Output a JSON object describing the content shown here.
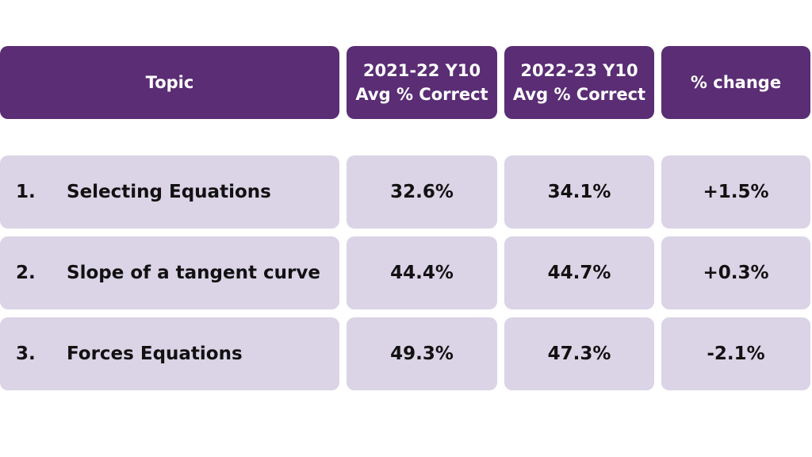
{
  "table": {
    "header": [
      [
        "Topic"
      ],
      [
        "2021-22 Y10",
        "Avg % Correct"
      ],
      [
        "2022-23 Y10",
        "Avg % Correct"
      ],
      [
        "% change"
      ]
    ],
    "rows": [
      {
        "number": "1.",
        "topic": "Selecting Equations",
        "cells": [
          "32.6%",
          "34.1%",
          "+1.5%"
        ]
      },
      {
        "number": "2.",
        "topic": "Slope of a tangent curve",
        "cells": [
          "44.4%",
          "44.7%",
          "+0.3%"
        ]
      },
      {
        "number": "3.",
        "topic": "Forces Equations",
        "cells": [
          "49.3%",
          "47.3%",
          "-2.1%"
        ]
      }
    ]
  }
}
